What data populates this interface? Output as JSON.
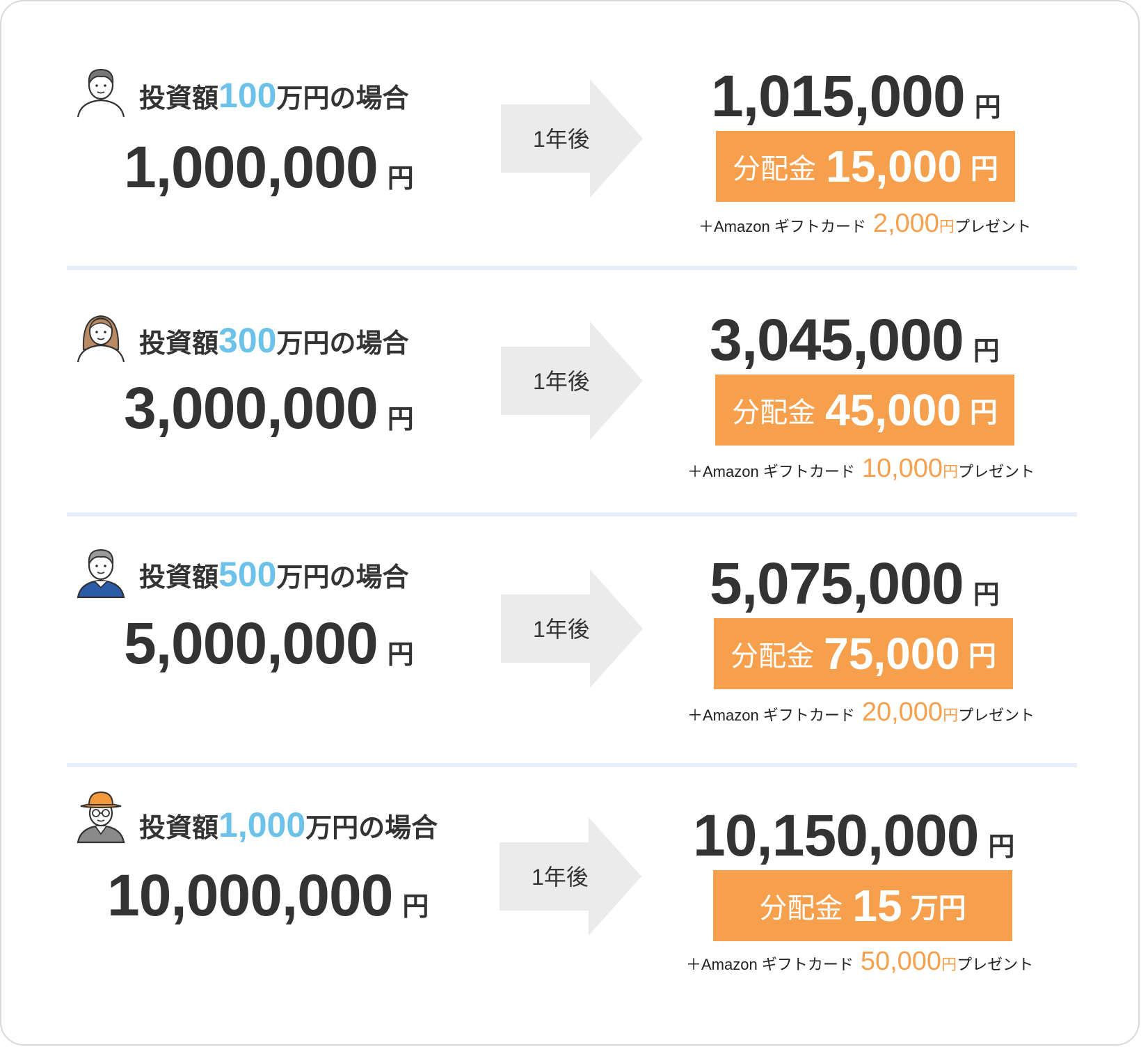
{
  "arrow_label": "1年後",
  "yen": "円",
  "heading_prefix": "投資額",
  "heading_suffix": "万円の場合",
  "distribution_label": "分配金",
  "gift_prefix": "＋Amazon ギフトカード",
  "gift_suffix": "プレゼント",
  "colors": {
    "accent_blue": "#6cc2e8",
    "accent_orange": "#f6a04d",
    "text": "#333333",
    "divider": "#e6eef7",
    "arrow": "#ebebeb"
  },
  "rows": [
    {
      "avatar_icon": "man-avatar-icon",
      "amount": "100",
      "invest": "1,000,000",
      "result": "1,015,000",
      "distribution": "15,000",
      "distribution_unit": "円",
      "gift": "2,000"
    },
    {
      "avatar_icon": "woman-avatar-icon",
      "amount": "300",
      "invest": "3,000,000",
      "result": "3,045,000",
      "distribution": "45,000",
      "distribution_unit": "円",
      "gift": "10,000"
    },
    {
      "avatar_icon": "older-man-avatar-icon",
      "amount": "500",
      "invest": "5,000,000",
      "result": "5,075,000",
      "distribution": "75,000",
      "distribution_unit": "円",
      "gift": "20,000"
    },
    {
      "avatar_icon": "hat-glasses-man-avatar-icon",
      "amount": "1,000",
      "invest": "10,000,000",
      "result": "10,150,000",
      "distribution": "15",
      "distribution_unit": "万円",
      "gift": "50,000"
    }
  ]
}
